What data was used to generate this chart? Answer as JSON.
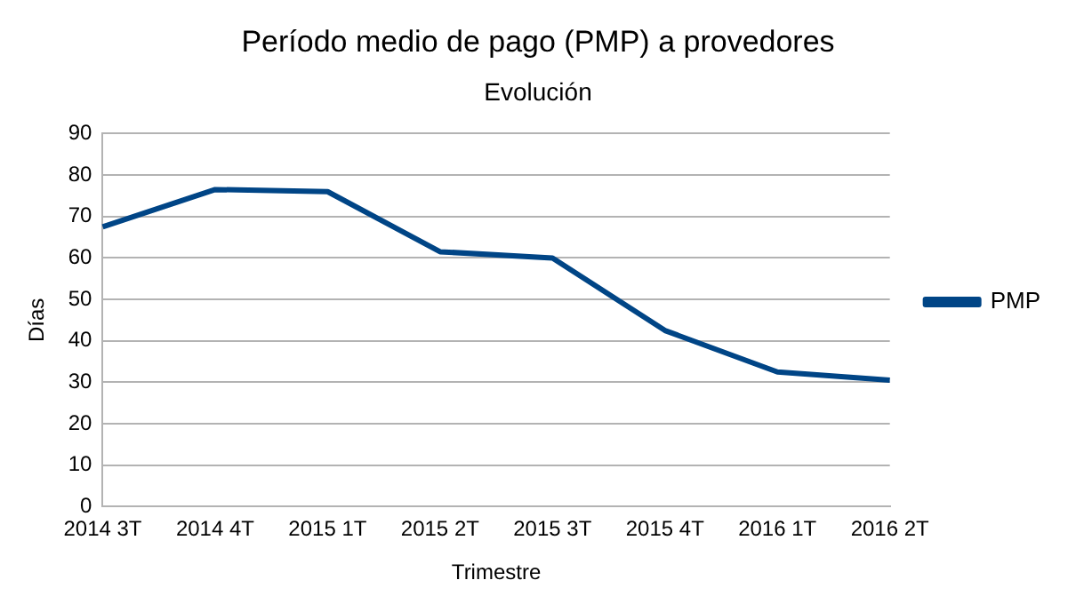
{
  "chart_data": {
    "type": "line",
    "title": "Período medio de pago (PMP) a provedores",
    "subtitle": "Evolución",
    "xlabel": "Trimestre",
    "ylabel": "Días",
    "categories": [
      "2014 3T",
      "2014 4T",
      "2015 1T",
      "2015 2T",
      "2015 3T",
      "2015 4T",
      "2016 1T",
      "2016 2T"
    ],
    "series": [
      {
        "name": "PMP",
        "color": "#004586",
        "values": [
          67.5,
          76.5,
          76,
          61.5,
          60,
          42.5,
          32.5,
          30.5
        ]
      }
    ],
    "ylim": [
      0,
      90
    ],
    "yticks": [
      0,
      10,
      20,
      30,
      40,
      50,
      60,
      70,
      80,
      90
    ],
    "grid": "y",
    "legend": "right",
    "marker": "none",
    "line_style": "solid"
  }
}
